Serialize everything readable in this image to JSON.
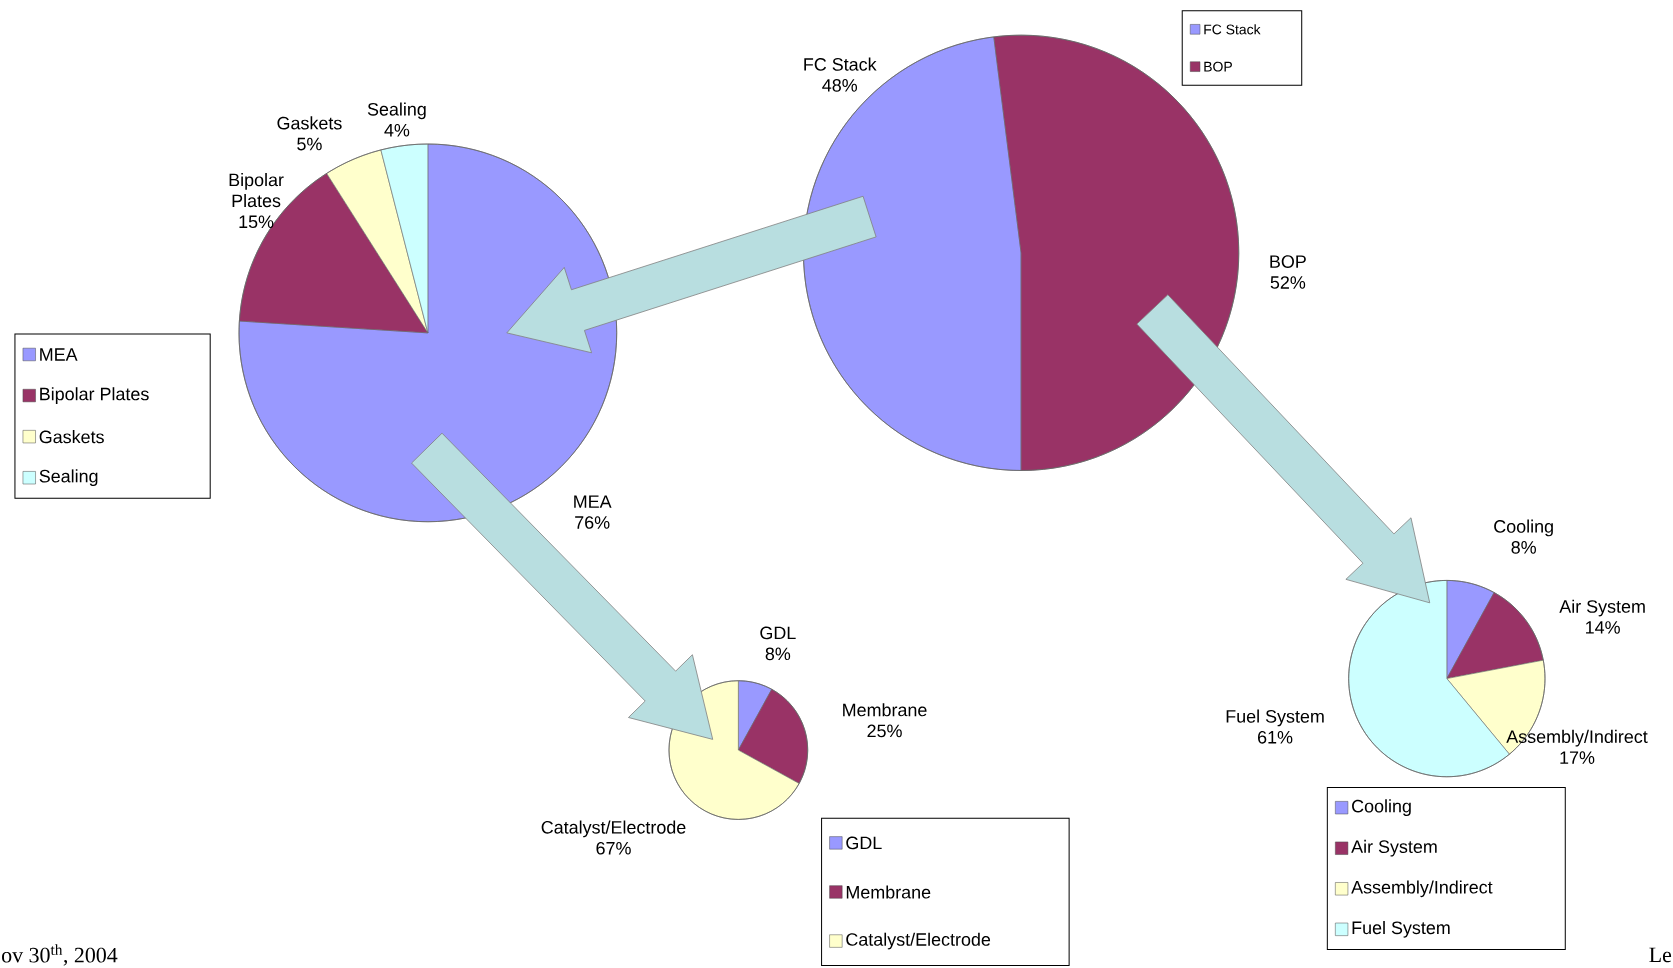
{
  "chart_data": [
    {
      "type": "pie",
      "categories": [
        "MEA",
        "Bipolar Plates",
        "Gaskets",
        "Sealing"
      ],
      "values": [
        76,
        15,
        5,
        4
      ],
      "value_labels": [
        "76%",
        "15%",
        "5%",
        "4%"
      ],
      "colors": [
        "#9999ff",
        "#993366",
        "#ffffcc",
        "#ccffff"
      ],
      "legend": "left",
      "annotations": [
        "ov 30$^{th}$, 2004",
        "Le"
      ]
    },
    {
      "type": "pie",
      "categories": [
        "FC Stack",
        "BOP"
      ],
      "values": [
        48,
        52
      ],
      "value_labels": [
        "48%",
        "52%"
      ],
      "colors": [
        "#9999ff",
        "#993366"
      ],
      "legend": "top right"
    },
    {
      "type": "pie",
      "categories": [
        "GDL",
        "Membrane",
        "Catalyst/Electrode"
      ],
      "values": [
        8,
        25,
        67
      ],
      "value_labels": [
        "8%",
        "25%",
        "67%"
      ],
      "colors": [
        "#9999ff",
        "#993366",
        "#ffffcc"
      ],
      "legend": "bottom right"
    },
    {
      "type": "pie",
      "categories": [
        "Cooling",
        "Air System",
        "Assembly/Indirect",
        "Fuel System"
      ],
      "values": [
        8,
        14,
        17,
        61
      ],
      "value_labels": [
        "8%",
        "14%",
        "17%",
        "61%"
      ],
      "colors": [
        "#9999ff",
        "#993366",
        "#ffffcc",
        "#ccffff"
      ],
      "legend": "bottom"
    }
  ]
}
